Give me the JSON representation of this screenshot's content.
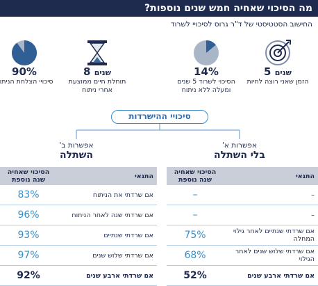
{
  "header": {
    "title": "מה הסיכוי שאחיה חמש שנים נוספות?",
    "subtitle": "החישוב הסטטיסטי של ד\"ר גרוס לסיכויי לשרוד"
  },
  "stats": [
    {
      "number": "5",
      "unit": "שנים",
      "caption": "הזמן שאני רוצה לחיות"
    },
    {
      "value": 14,
      "label": "14%",
      "caption": "הסיכוי לשרוד 5 שנים ומעלה ללא ניתוח"
    },
    {
      "number": "8",
      "unit": "שנים",
      "caption": "תוחלת חיים ממוצעת אחרי ניתוח"
    },
    {
      "value": 90,
      "label": "90%",
      "caption": "סיכויי הצלחת הניתוח"
    }
  ],
  "section_title": "סיכויי ההישרדות",
  "options": [
    {
      "label": "אפשרות א'",
      "title": "בלי השתלה",
      "table": {
        "columns": [
          "התנאי",
          "הסיכוי שאחיה שנה נוספת"
        ],
        "rows": [
          [
            "–",
            "–"
          ],
          [
            "–",
            "–"
          ],
          [
            "אם שרדתי שנתיים לאחר גילוי המחלה",
            "75%"
          ],
          [
            "אם שרדתי שלוש שנים לאחר הגילוי",
            "68%"
          ],
          [
            "אם שרדתי ארבע שנים",
            "52%"
          ]
        ]
      }
    },
    {
      "label": "אפשרות ב'",
      "title": "השתלה",
      "table": {
        "columns": [
          "התנאי",
          "הסיכוי שאחיה שנה נוספת"
        ],
        "rows": [
          [
            "אם שרדתי את הניתוח",
            "83%"
          ],
          [
            "אם שרדתי שנה לאחר הניתוח",
            "96%"
          ],
          [
            "אם שרדתי שנתיים",
            "93%"
          ],
          [
            "אם שרדתי שלוש שנים",
            "97%"
          ],
          [
            "אם שרדתי ארבע שנים",
            "92%"
          ]
        ]
      }
    }
  ]
}
